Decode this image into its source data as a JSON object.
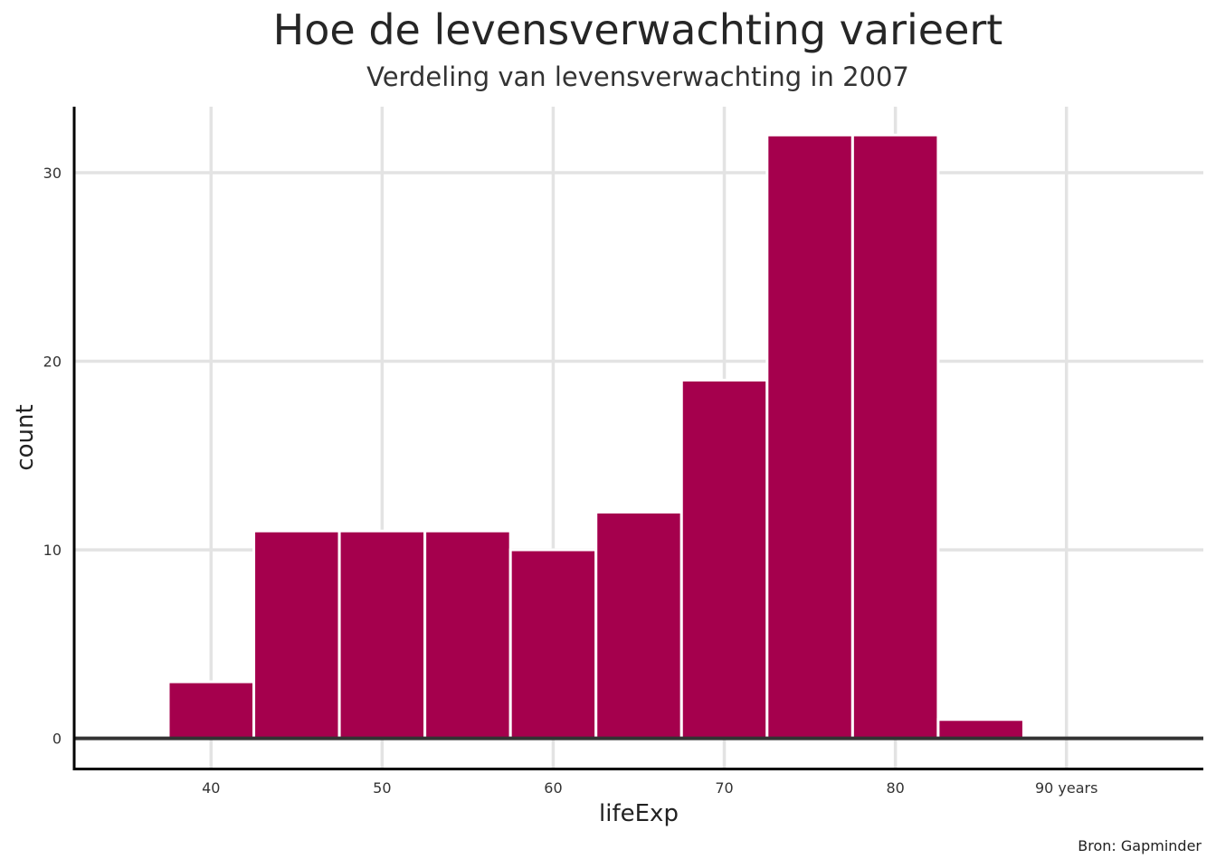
{
  "chart_data": {
    "type": "bar",
    "title": "Hoe de levensverwachting varieert",
    "subtitle": "Verdeling van levensverwachting in 2007",
    "caption": "Bron: Gapminder",
    "xlabel": "lifeExp",
    "ylabel": "count",
    "x_tick_labels": [
      "40",
      "50",
      "60",
      "70",
      "80",
      "90 years"
    ],
    "y_tick_labels": [
      "0",
      "10",
      "20",
      "30"
    ],
    "xlim": [
      32,
      98
    ],
    "ylim": [
      -1.6,
      33.5
    ],
    "bin_width": 5,
    "bins": [
      {
        "center": 40,
        "count": 3
      },
      {
        "center": 45,
        "count": 11
      },
      {
        "center": 50,
        "count": 11
      },
      {
        "center": 55,
        "count": 11
      },
      {
        "center": 60,
        "count": 10
      },
      {
        "center": 65,
        "count": 12
      },
      {
        "center": 70,
        "count": 19
      },
      {
        "center": 75,
        "count": 32
      },
      {
        "center": 80,
        "count": 32
      },
      {
        "center": 85,
        "count": 1
      }
    ],
    "bar_color": "#A5004D",
    "bar_outline": "#ffffff",
    "grid": true
  }
}
